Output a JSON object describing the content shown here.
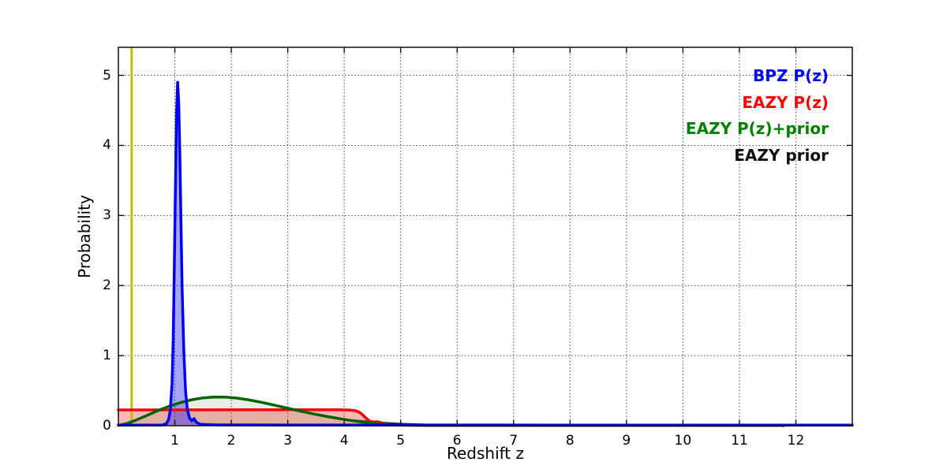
{
  "axes": {
    "xlabel": "Redshift z",
    "ylabel": "Probability",
    "xticks": [
      "1",
      "2",
      "3",
      "4",
      "5",
      "6",
      "7",
      "8",
      "9",
      "10",
      "11",
      "12"
    ],
    "xtick_values": [
      1,
      2,
      3,
      4,
      5,
      6,
      7,
      8,
      9,
      10,
      11,
      12
    ],
    "yticks": [
      "0",
      "1",
      "2",
      "3",
      "4",
      "5"
    ],
    "ytick_values": [
      0,
      1,
      2,
      3,
      4,
      5
    ],
    "grid": "dotted",
    "grid_color": "#444444",
    "spine_color": "#000000"
  },
  "legend": {
    "items": [
      {
        "label": "BPZ P(z)",
        "color": "#0000ff"
      },
      {
        "label": "EAZY P(z)",
        "color": "#ff0000"
      },
      {
        "label": "EAZY P(z)+prior",
        "color": "#008000"
      },
      {
        "label": "EAZY prior",
        "color": "#111111"
      }
    ]
  },
  "chart_data": {
    "type": "line",
    "title": "",
    "xlabel": "Redshift z",
    "ylabel": "Probability",
    "xlim": [
      0,
      13
    ],
    "ylim": [
      0,
      5.4
    ],
    "grid": true,
    "legend_position": "upper right",
    "vline": {
      "name": "reference-redshift-line",
      "x": 0.235,
      "color": "#bfbf00",
      "width": 3
    },
    "series": [
      {
        "name": "BPZ P(z)",
        "color": "#0000ee",
        "fill": "rgba(0,0,255,0.35)",
        "width": 3.5,
        "points": [
          [
            0,
            0.008
          ],
          [
            0.78,
            0.01
          ],
          [
            0.85,
            0.03
          ],
          [
            0.89,
            0.09
          ],
          [
            0.92,
            0.22
          ],
          [
            0.95,
            0.6
          ],
          [
            0.97,
            1.2
          ],
          [
            0.99,
            2.2
          ],
          [
            1.01,
            3.4
          ],
          [
            1.03,
            4.45
          ],
          [
            1.05,
            4.9
          ],
          [
            1.07,
            4.6
          ],
          [
            1.09,
            3.8
          ],
          [
            1.11,
            2.85
          ],
          [
            1.13,
            1.95
          ],
          [
            1.16,
            1.05
          ],
          [
            1.19,
            0.5
          ],
          [
            1.22,
            0.24
          ],
          [
            1.26,
            0.11
          ],
          [
            1.3,
            0.07
          ],
          [
            1.34,
            0.1
          ],
          [
            1.38,
            0.05
          ],
          [
            1.45,
            0.02
          ],
          [
            1.7,
            0.012
          ],
          [
            3,
            0.01
          ],
          [
            8,
            0.009
          ],
          [
            13,
            0.009
          ]
        ]
      },
      {
        "name": "EAZY P(z)",
        "color": "#ff0000",
        "fill": "rgba(255,0,0,0.28)",
        "width": 3.5,
        "points": [
          [
            0,
            0.225
          ],
          [
            3.9,
            0.228
          ],
          [
            4.1,
            0.224
          ],
          [
            4.22,
            0.21
          ],
          [
            4.3,
            0.175
          ],
          [
            4.38,
            0.115
          ],
          [
            4.45,
            0.065
          ],
          [
            4.52,
            0.052
          ],
          [
            4.58,
            0.057
          ],
          [
            4.65,
            0.045
          ],
          [
            4.73,
            0.022
          ],
          [
            4.82,
            0.011
          ],
          [
            5.0,
            0.007
          ],
          [
            5.6,
            0.005
          ],
          [
            11.78,
            0.005
          ],
          [
            11.78,
            0
          ]
        ]
      },
      {
        "name": "EAZY P(z)+prior",
        "color": "#006400",
        "fill": "rgba(0,100,0,0.10)",
        "width": 3.5,
        "points": [
          [
            0,
            0.004
          ],
          [
            0.15,
            0.032
          ],
          [
            0.3,
            0.075
          ],
          [
            0.5,
            0.145
          ],
          [
            0.7,
            0.215
          ],
          [
            0.9,
            0.278
          ],
          [
            1.1,
            0.33
          ],
          [
            1.3,
            0.37
          ],
          [
            1.5,
            0.397
          ],
          [
            1.7,
            0.41
          ],
          [
            1.9,
            0.408
          ],
          [
            2.1,
            0.394
          ],
          [
            2.3,
            0.37
          ],
          [
            2.5,
            0.34
          ],
          [
            2.7,
            0.305
          ],
          [
            2.9,
            0.268
          ],
          [
            3.1,
            0.231
          ],
          [
            3.3,
            0.195
          ],
          [
            3.5,
            0.161
          ],
          [
            3.7,
            0.13
          ],
          [
            3.9,
            0.102
          ],
          [
            4.1,
            0.077
          ],
          [
            4.3,
            0.055
          ],
          [
            4.5,
            0.036
          ],
          [
            4.7,
            0.021
          ],
          [
            4.9,
            0.012
          ],
          [
            5.1,
            0.008
          ],
          [
            5.5,
            0.005
          ],
          [
            6.2,
            0.004
          ],
          [
            11.78,
            0.004
          ],
          [
            11.78,
            0
          ]
        ]
      },
      {
        "name": "EAZY prior",
        "color": "#2a2a2a",
        "fill": "none",
        "width": 2.5,
        "points": [
          [
            0,
            0.004
          ],
          [
            0.15,
            0.032
          ],
          [
            0.3,
            0.075
          ],
          [
            0.5,
            0.145
          ],
          [
            0.7,
            0.215
          ],
          [
            0.9,
            0.278
          ],
          [
            1.1,
            0.33
          ],
          [
            1.3,
            0.37
          ],
          [
            1.5,
            0.397
          ],
          [
            1.7,
            0.41
          ],
          [
            1.9,
            0.408
          ],
          [
            2.1,
            0.394
          ],
          [
            2.3,
            0.37
          ],
          [
            2.5,
            0.34
          ],
          [
            2.7,
            0.305
          ],
          [
            2.9,
            0.268
          ],
          [
            3.1,
            0.231
          ],
          [
            3.3,
            0.195
          ],
          [
            3.5,
            0.161
          ],
          [
            3.7,
            0.13
          ],
          [
            3.9,
            0.102
          ],
          [
            4.1,
            0.08
          ],
          [
            4.4,
            0.058
          ],
          [
            4.7,
            0.04
          ],
          [
            5.0,
            0.027
          ],
          [
            5.3,
            0.018
          ],
          [
            5.6,
            0.011
          ],
          [
            6.0,
            0.006
          ],
          [
            6.5,
            0.004
          ],
          [
            7.0,
            0.003
          ],
          [
            11.78,
            0.003
          ],
          [
            11.78,
            0
          ]
        ]
      }
    ]
  }
}
